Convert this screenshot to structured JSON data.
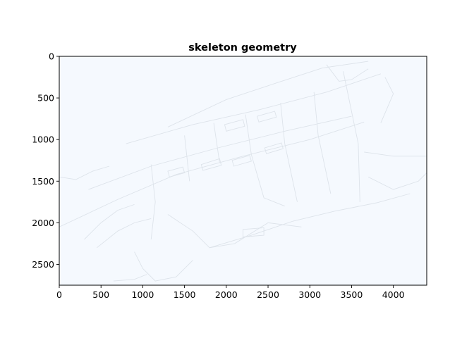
{
  "chart_data": {
    "type": "image",
    "title": "skeleton geometry",
    "xlabel": "",
    "ylabel": "",
    "xlim": [
      0,
      4400
    ],
    "ylim": [
      2750,
      0
    ],
    "xticks": [
      0,
      500,
      1000,
      1500,
      2000,
      2500,
      3000,
      3500,
      4000
    ],
    "yticks": [
      0,
      500,
      1000,
      1500,
      2000,
      2500
    ],
    "grid": false,
    "background_color": "#f5f9fe",
    "line_color": "#dde3ea",
    "features": [
      {
        "name": "main-axis-lower",
        "points": [
          [
            0,
            2050
          ],
          [
            700,
            1720
          ],
          [
            1400,
            1420
          ],
          [
            2200,
            1200
          ],
          [
            3000,
            1000
          ],
          [
            3650,
            790
          ]
        ]
      },
      {
        "name": "main-axis-mid",
        "points": [
          [
            350,
            1600
          ],
          [
            1100,
            1320
          ],
          [
            1900,
            1100
          ],
          [
            2700,
            900
          ],
          [
            3500,
            720
          ]
        ]
      },
      {
        "name": "main-axis-upper",
        "points": [
          [
            800,
            1050
          ],
          [
            1600,
            820
          ],
          [
            2400,
            640
          ],
          [
            3200,
            430
          ],
          [
            3850,
            210
          ]
        ]
      },
      {
        "name": "north-edge",
        "points": [
          [
            1300,
            850
          ],
          [
            2000,
            520
          ],
          [
            2600,
            320
          ],
          [
            3150,
            140
          ],
          [
            3700,
            60
          ]
        ]
      },
      {
        "name": "south-road",
        "points": [
          [
            1800,
            2300
          ],
          [
            2300,
            2150
          ],
          [
            2800,
            1980
          ],
          [
            3300,
            1860
          ],
          [
            3800,
            1760
          ],
          [
            4200,
            1650
          ]
        ]
      },
      {
        "name": "east-road",
        "points": [
          [
            3650,
            1150
          ],
          [
            4000,
            1200
          ],
          [
            4400,
            1200
          ]
        ]
      },
      {
        "name": "west-edge",
        "points": [
          [
            0,
            1450
          ],
          [
            200,
            1480
          ],
          [
            400,
            1380
          ],
          [
            600,
            1320
          ]
        ]
      },
      {
        "name": "cross-1",
        "points": [
          [
            1100,
            1300
          ],
          [
            1150,
            1750
          ],
          [
            1100,
            2200
          ]
        ]
      },
      {
        "name": "cross-2",
        "points": [
          [
            1500,
            950
          ],
          [
            1560,
            1500
          ]
        ]
      },
      {
        "name": "cross-3",
        "points": [
          [
            1850,
            800
          ],
          [
            1920,
            1280
          ]
        ]
      },
      {
        "name": "cross-4",
        "points": [
          [
            2230,
            700
          ],
          [
            2300,
            1180
          ],
          [
            2450,
            1700
          ],
          [
            2700,
            1800
          ]
        ]
      },
      {
        "name": "cross-5",
        "points": [
          [
            2650,
            560
          ],
          [
            2700,
            1050
          ],
          [
            2850,
            1750
          ]
        ]
      },
      {
        "name": "cross-6",
        "points": [
          [
            3050,
            430
          ],
          [
            3100,
            950
          ],
          [
            3250,
            1650
          ]
        ]
      },
      {
        "name": "cross-7",
        "points": [
          [
            3400,
            180
          ],
          [
            3580,
            1050
          ],
          [
            3600,
            1750
          ]
        ]
      },
      {
        "name": "east-spur",
        "points": [
          [
            3900,
            250
          ],
          [
            4000,
            450
          ],
          [
            3850,
            800
          ]
        ]
      },
      {
        "name": "south-west-grid",
        "points": [
          [
            300,
            2200
          ],
          [
            500,
            2000
          ],
          [
            700,
            1850
          ],
          [
            900,
            1780
          ]
        ]
      },
      {
        "name": "south-west-grid-2",
        "points": [
          [
            450,
            2300
          ],
          [
            700,
            2100
          ],
          [
            900,
            2000
          ],
          [
            1100,
            1950
          ]
        ]
      },
      {
        "name": "south-loop",
        "points": [
          [
            900,
            2350
          ],
          [
            1000,
            2550
          ],
          [
            1150,
            2700
          ],
          [
            1400,
            2650
          ],
          [
            1600,
            2450
          ]
        ]
      },
      {
        "name": "river-path",
        "points": [
          [
            1300,
            1900
          ],
          [
            1600,
            2100
          ],
          [
            1800,
            2300
          ],
          [
            2100,
            2250
          ],
          [
            2500,
            2000
          ],
          [
            2900,
            2050
          ]
        ]
      },
      {
        "name": "ring-path",
        "points": [
          [
            650,
            2700
          ],
          [
            900,
            2680
          ],
          [
            1050,
            2620
          ]
        ]
      },
      {
        "name": "north-spur",
        "points": [
          [
            3200,
            100
          ],
          [
            3350,
            300
          ],
          [
            3500,
            280
          ],
          [
            3700,
            150
          ]
        ]
      },
      {
        "name": "east-diag",
        "points": [
          [
            3700,
            1450
          ],
          [
            4000,
            1600
          ],
          [
            4300,
            1500
          ],
          [
            4400,
            1400
          ]
        ]
      }
    ],
    "blocks": [
      {
        "name": "block-1",
        "points": [
          [
            1980,
            820
          ],
          [
            2200,
            760
          ],
          [
            2220,
            840
          ],
          [
            2000,
            900
          ]
        ]
      },
      {
        "name": "block-2",
        "points": [
          [
            2370,
            720
          ],
          [
            2580,
            660
          ],
          [
            2600,
            730
          ],
          [
            2390,
            790
          ]
        ]
      },
      {
        "name": "block-3",
        "points": [
          [
            1700,
            1300
          ],
          [
            1920,
            1230
          ],
          [
            1940,
            1310
          ],
          [
            1720,
            1370
          ]
        ]
      },
      {
        "name": "block-4",
        "points": [
          [
            2070,
            1250
          ],
          [
            2280,
            1190
          ],
          [
            2300,
            1260
          ],
          [
            2090,
            1320
          ]
        ]
      },
      {
        "name": "block-5",
        "points": [
          [
            2460,
            1100
          ],
          [
            2660,
            1040
          ],
          [
            2680,
            1110
          ],
          [
            2480,
            1170
          ]
        ]
      },
      {
        "name": "block-6",
        "points": [
          [
            1300,
            1380
          ],
          [
            1480,
            1330
          ],
          [
            1500,
            1400
          ],
          [
            1320,
            1450
          ]
        ]
      },
      {
        "name": "block-7",
        "points": [
          [
            2200,
            2080
          ],
          [
            2450,
            2060
          ],
          [
            2450,
            2150
          ],
          [
            2200,
            2170
          ]
        ]
      }
    ]
  }
}
